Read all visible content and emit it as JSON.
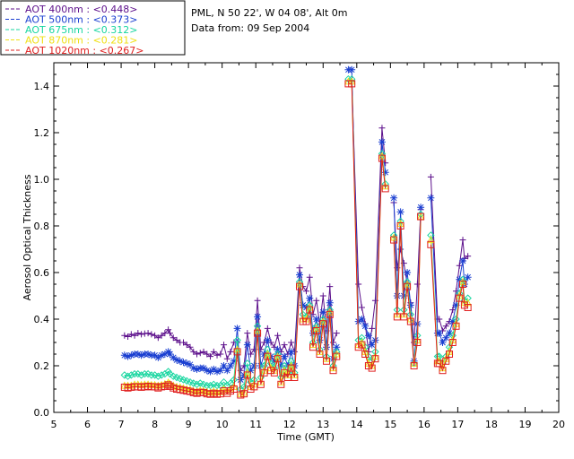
{
  "header": {
    "site_line": "PML, N 50 22', W 04 08', Alt 0m",
    "date_line": "Data from: 09 Sep 2004"
  },
  "chart_data": {
    "type": "line",
    "xlabel": "Time (GMT)",
    "ylabel": "Aerosol Optical Thickness",
    "xlim": [
      5,
      20
    ],
    "ylim": [
      0.0,
      1.5
    ],
    "xticks": [
      "5",
      "6",
      "7",
      "8",
      "9",
      "10",
      "11",
      "12",
      "13",
      "14",
      "15",
      "16",
      "17",
      "18",
      "19",
      "20"
    ],
    "yticks": [
      "0.0",
      "0.2",
      "0.4",
      "0.6",
      "0.8",
      "1.0",
      "1.2",
      "1.4"
    ],
    "grid": false,
    "legend_position": "top-left",
    "x": [
      7.1,
      7.2,
      7.3,
      7.4,
      7.5,
      7.6,
      7.7,
      7.8,
      7.9,
      8.0,
      8.1,
      8.2,
      8.3,
      8.4,
      8.45,
      8.55,
      8.65,
      8.75,
      8.85,
      8.95,
      9.05,
      9.15,
      9.25,
      9.35,
      9.45,
      9.55,
      9.65,
      9.75,
      9.85,
      9.95,
      10.05,
      10.15,
      10.25,
      10.35,
      10.45,
      10.55,
      10.65,
      10.75,
      10.85,
      10.95,
      11.05,
      11.15,
      11.25,
      11.35,
      11.45,
      11.55,
      11.65,
      11.75,
      11.85,
      11.95,
      12.05,
      12.15,
      12.3,
      12.4,
      12.5,
      12.6,
      12.7,
      12.8,
      12.9,
      13.0,
      13.1,
      13.2,
      13.3,
      13.4,
      13.5,
      13.6,
      13.75,
      13.85,
      14.05,
      14.15,
      14.25,
      14.35,
      14.45,
      14.55,
      14.75,
      14.85,
      14.95,
      15.1,
      15.2,
      15.3,
      15.4,
      15.5,
      15.6,
      15.7,
      15.8,
      15.9,
      16.0,
      16.1,
      16.2,
      16.4,
      16.45,
      16.55,
      16.65,
      16.75,
      16.85,
      16.95,
      17.05,
      17.15,
      17.2,
      17.3
    ],
    "series": [
      {
        "name": "AOT  400nm : <0.448>",
        "color": "#5c0f8b",
        "marker": "plus",
        "values": [
          0.33,
          0.325,
          0.335,
          0.33,
          0.34,
          0.335,
          0.338,
          0.34,
          0.335,
          0.33,
          0.32,
          0.33,
          0.34,
          0.355,
          0.34,
          0.32,
          0.31,
          0.3,
          0.3,
          0.29,
          0.28,
          0.26,
          0.25,
          0.255,
          0.26,
          0.25,
          0.24,
          0.26,
          0.245,
          0.25,
          0.29,
          0.23,
          0.26,
          0.3,
          0.3,
          0.18,
          0.2,
          0.34,
          0.25,
          0.27,
          0.48,
          0.27,
          0.3,
          0.36,
          0.3,
          0.28,
          0.33,
          0.26,
          0.29,
          0.25,
          0.3,
          0.26,
          0.62,
          0.54,
          0.52,
          0.58,
          0.42,
          0.48,
          0.38,
          0.5,
          0.35,
          0.54,
          0.3,
          0.34,
          null,
          null,
          null,
          1.42,
          0.55,
          0.45,
          0.38,
          0.26,
          0.36,
          0.48,
          1.22,
          1.07,
          null,
          0.9,
          0.62,
          0.7,
          0.64,
          0.55,
          0.47,
          0.3,
          0.55,
          0.87,
          null,
          null,
          1.01,
          0.4,
          0.4,
          0.35,
          0.37,
          0.39,
          0.44,
          0.52,
          0.63,
          0.74,
          0.66,
          0.67
        ]
      },
      {
        "name": "AOT  500nm : <0.373>",
        "color": "#1a3fd1",
        "marker": "star",
        "values": [
          0.245,
          0.24,
          0.245,
          0.25,
          0.25,
          0.245,
          0.25,
          0.25,
          0.245,
          0.245,
          0.235,
          0.245,
          0.25,
          0.26,
          0.25,
          0.235,
          0.225,
          0.22,
          0.215,
          0.21,
          0.205,
          0.19,
          0.185,
          0.19,
          0.19,
          0.18,
          0.175,
          0.185,
          0.175,
          0.18,
          0.2,
          0.18,
          0.2,
          0.22,
          0.36,
          0.14,
          0.16,
          0.29,
          0.18,
          0.2,
          0.41,
          0.2,
          0.25,
          0.31,
          0.24,
          0.22,
          0.27,
          0.2,
          0.24,
          0.2,
          0.26,
          0.2,
          0.59,
          0.46,
          0.45,
          0.49,
          0.34,
          0.4,
          0.31,
          0.43,
          0.28,
          0.47,
          0.23,
          0.28,
          null,
          null,
          1.47,
          1.47,
          0.39,
          0.4,
          0.37,
          0.33,
          0.29,
          0.31,
          1.16,
          1.03,
          null,
          0.92,
          0.5,
          0.86,
          0.5,
          0.6,
          0.46,
          0.22,
          0.38,
          0.88,
          null,
          null,
          0.92,
          0.34,
          0.34,
          0.3,
          0.32,
          0.34,
          0.39,
          0.46,
          0.57,
          0.65,
          0.55,
          0.58
        ]
      },
      {
        "name": "AOT  675nm : <0.312>",
        "color": "#19d6a0",
        "marker": "diamond",
        "values": [
          0.16,
          0.155,
          0.16,
          0.165,
          0.165,
          0.16,
          0.165,
          0.165,
          0.16,
          0.16,
          0.155,
          0.16,
          0.165,
          0.175,
          0.165,
          0.155,
          0.15,
          0.145,
          0.14,
          0.135,
          0.13,
          0.125,
          0.12,
          0.125,
          0.12,
          0.115,
          0.115,
          0.12,
          0.115,
          0.115,
          0.13,
          0.115,
          0.125,
          0.14,
          0.31,
          0.1,
          0.11,
          0.21,
          0.13,
          0.14,
          0.37,
          0.15,
          0.2,
          0.27,
          0.21,
          0.19,
          0.25,
          0.15,
          0.2,
          0.17,
          0.22,
          0.17,
          0.56,
          0.42,
          0.41,
          0.46,
          0.3,
          0.37,
          0.27,
          0.4,
          0.24,
          0.44,
          0.2,
          0.26,
          null,
          null,
          1.43,
          1.43,
          0.31,
          0.32,
          0.28,
          0.24,
          0.22,
          0.26,
          1.11,
          0.98,
          null,
          0.76,
          0.44,
          0.82,
          0.44,
          0.56,
          0.42,
          0.21,
          0.33,
          0.85,
          null,
          null,
          0.76,
          0.24,
          0.24,
          0.21,
          0.24,
          0.28,
          0.33,
          0.4,
          0.51,
          0.57,
          0.48,
          0.49
        ]
      },
      {
        "name": "AOT  870nm : <0.281>",
        "color": "#f0e015",
        "marker": "triangle",
        "values": [
          0.115,
          0.115,
          0.115,
          0.12,
          0.12,
          0.118,
          0.12,
          0.12,
          0.118,
          0.118,
          0.115,
          0.118,
          0.122,
          0.128,
          0.122,
          0.115,
          0.11,
          0.108,
          0.104,
          0.1,
          0.098,
          0.092,
          0.09,
          0.094,
          0.092,
          0.088,
          0.086,
          0.09,
          0.086,
          0.088,
          0.1,
          0.09,
          0.1,
          0.11,
          0.27,
          0.08,
          0.085,
          0.17,
          0.11,
          0.12,
          0.35,
          0.13,
          0.18,
          0.25,
          0.19,
          0.18,
          0.24,
          0.13,
          0.18,
          0.16,
          0.2,
          0.16,
          0.55,
          0.4,
          0.4,
          0.45,
          0.29,
          0.36,
          0.26,
          0.39,
          0.23,
          0.43,
          0.19,
          0.25,
          null,
          null,
          1.42,
          1.42,
          0.29,
          0.3,
          0.26,
          0.21,
          0.2,
          0.24,
          1.1,
          0.97,
          null,
          0.75,
          0.42,
          0.81,
          0.42,
          0.55,
          0.4,
          0.21,
          0.31,
          0.84,
          null,
          null,
          0.74,
          0.22,
          0.22,
          0.19,
          0.23,
          0.26,
          0.31,
          0.38,
          0.5,
          0.56,
          0.47,
          0.47
        ]
      },
      {
        "name": "AOT 1020nm : <0.267>",
        "color": "#e02020",
        "marker": "square",
        "values": [
          0.108,
          0.105,
          0.108,
          0.11,
          0.11,
          0.108,
          0.11,
          0.112,
          0.11,
          0.11,
          0.105,
          0.11,
          0.112,
          0.118,
          0.112,
          0.105,
          0.1,
          0.098,
          0.095,
          0.092,
          0.09,
          0.085,
          0.082,
          0.086,
          0.085,
          0.08,
          0.078,
          0.082,
          0.078,
          0.08,
          0.092,
          0.082,
          0.092,
          0.1,
          0.26,
          0.075,
          0.08,
          0.16,
          0.1,
          0.11,
          0.34,
          0.12,
          0.17,
          0.24,
          0.18,
          0.17,
          0.23,
          0.12,
          0.17,
          0.15,
          0.19,
          0.15,
          0.54,
          0.39,
          0.39,
          0.44,
          0.28,
          0.35,
          0.25,
          0.38,
          0.22,
          0.42,
          0.18,
          0.24,
          null,
          null,
          1.41,
          1.41,
          0.28,
          0.29,
          0.25,
          0.2,
          0.19,
          0.23,
          1.09,
          0.96,
          null,
          0.74,
          0.41,
          0.8,
          0.41,
          0.54,
          0.39,
          0.2,
          0.3,
          0.84,
          null,
          null,
          0.72,
          0.21,
          0.21,
          0.18,
          0.22,
          0.25,
          0.3,
          0.37,
          0.49,
          0.55,
          0.46,
          0.45
        ]
      }
    ]
  }
}
